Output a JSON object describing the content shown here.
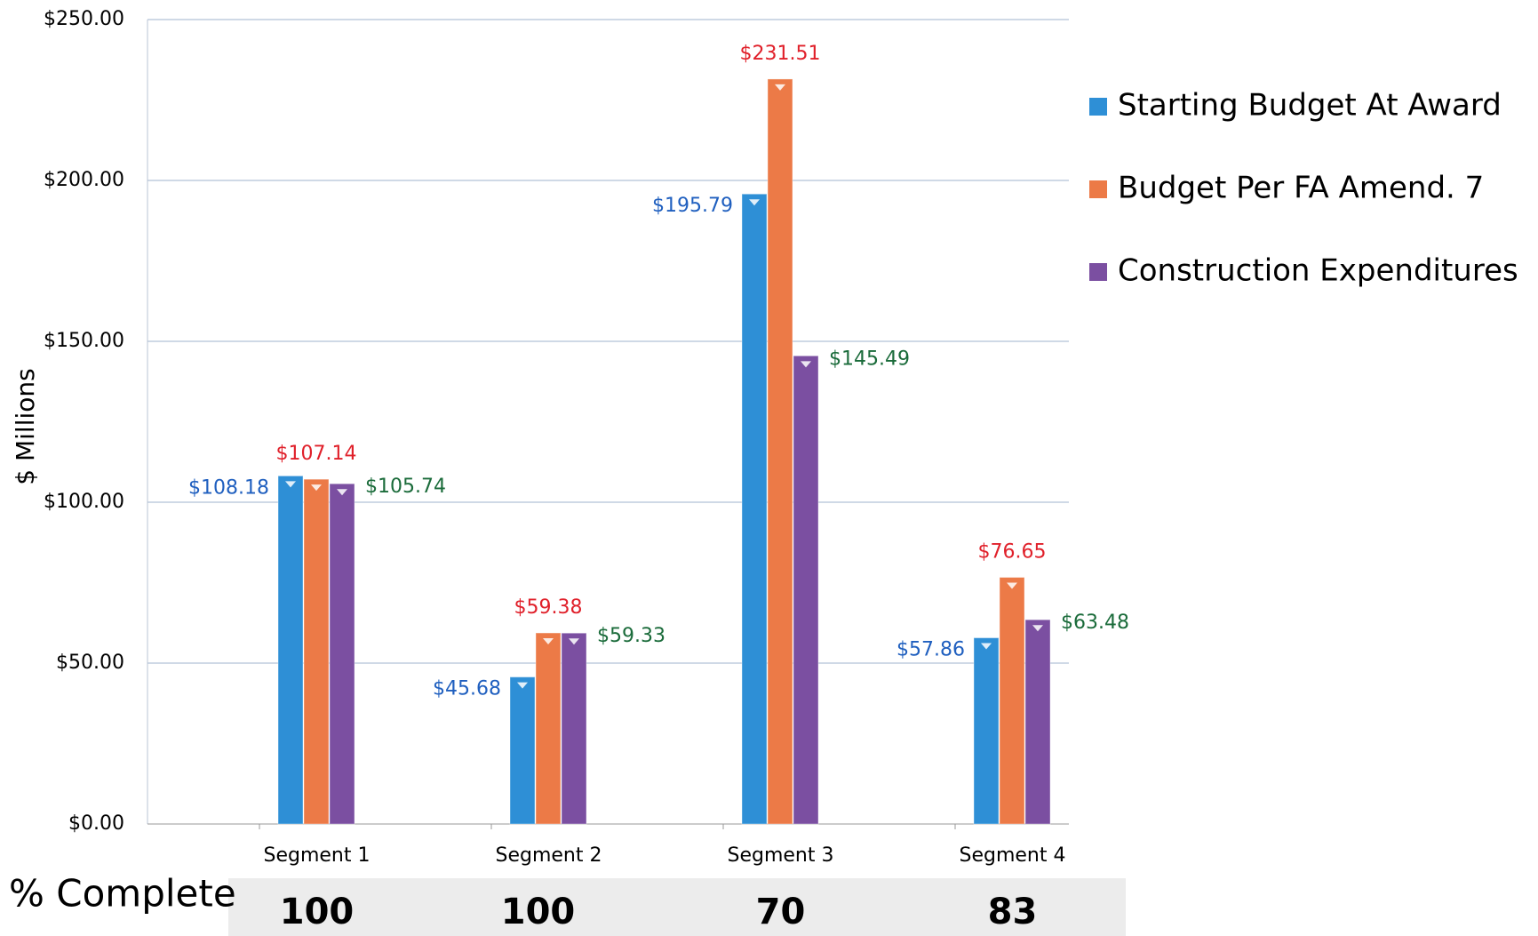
{
  "chart_data": {
    "type": "bar",
    "y_label": "$ Millions",
    "categories": [
      "Segment 1",
      "Segment 2",
      "Segment 3",
      "Segment 4"
    ],
    "series": [
      {
        "name": "Starting Budget  At Award",
        "color": "#2e8fd6",
        "label_color": "#1f5fbf",
        "values": [
          108.18,
          45.68,
          195.79,
          57.86
        ],
        "value_labels": [
          "$108.18",
          "$45.68",
          "$195.79",
          "$57.86"
        ]
      },
      {
        "name": "Budget Per FA Amend. 7",
        "color": "#ec7a47",
        "label_color": "#e0202a",
        "values": [
          107.14,
          59.38,
          231.51,
          76.65
        ],
        "value_labels": [
          "$107.14",
          "$59.38",
          "$231.51",
          "$76.65"
        ]
      },
      {
        "name": "Construction Expenditures",
        "color": "#7b4fa1",
        "label_color": "#1a6b3a",
        "values": [
          105.74,
          59.33,
          145.49,
          63.48
        ],
        "value_labels": [
          "$105.74",
          "$59.33",
          "$145.49",
          "$63.48"
        ]
      }
    ],
    "ylim": [
      0,
      250
    ],
    "yticks": [
      {
        "value": 0,
        "label": "$0.00"
      },
      {
        "value": 50,
        "label": "$50.00"
      },
      {
        "value": 100,
        "label": "$100.00"
      },
      {
        "value": 150,
        "label": "$150.00"
      },
      {
        "value": 200,
        "label": "$200.00"
      },
      {
        "value": 250,
        "label": "$250.00"
      }
    ],
    "grid": true
  },
  "percent_complete": {
    "label": "% Complete",
    "values": [
      100,
      100,
      70,
      83
    ]
  }
}
